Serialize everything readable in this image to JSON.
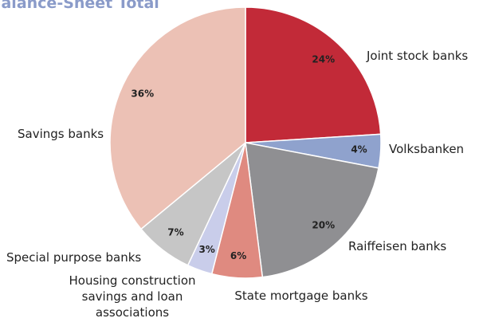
{
  "chart_data": {
    "type": "pie",
    "title": "Balance-Sheet Total",
    "categories": [
      "Joint stock banks",
      "Volksbanken",
      "Raiffeisen banks",
      "State mortgage banks",
      "Housing construction\nsavings and loan\nassociations",
      "Special purpose banks",
      "Savings banks"
    ],
    "values": [
      24,
      4,
      20,
      6,
      3,
      7,
      36
    ],
    "value_labels": [
      "24%",
      "4%",
      "20%",
      "6%",
      "3%",
      "7%",
      "36%"
    ],
    "colors": [
      "#c22a38",
      "#8fa2cd",
      "#8f8f92",
      "#df8a80",
      "#c9cdea",
      "#c6c6c6",
      "#ecc1b5"
    ]
  }
}
